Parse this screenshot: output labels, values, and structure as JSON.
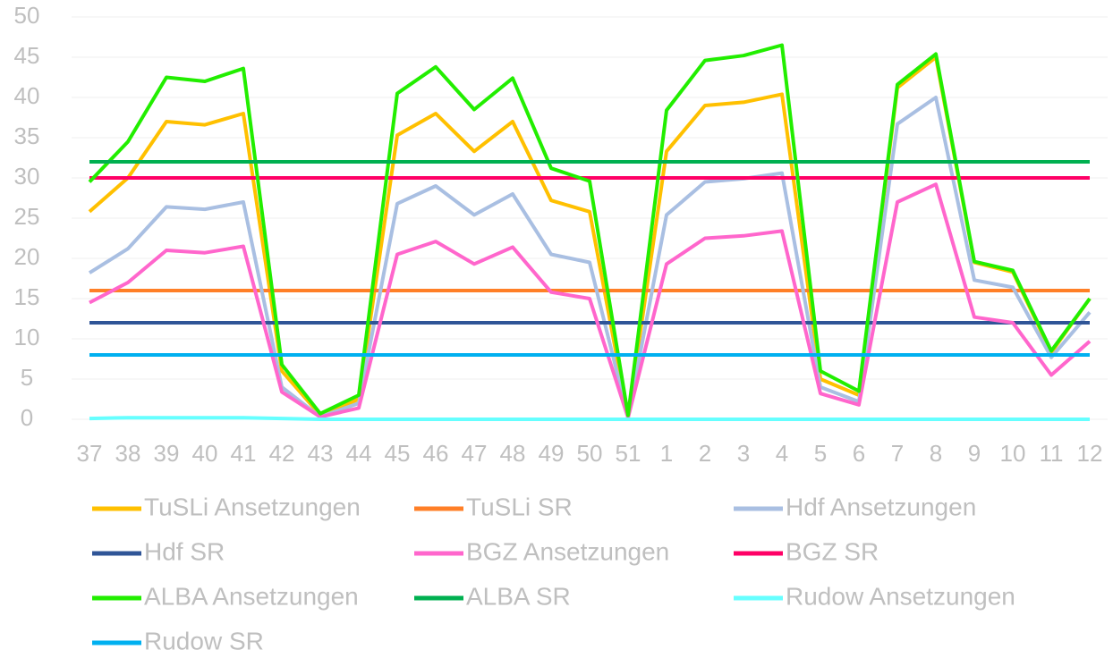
{
  "chart_data": {
    "type": "line",
    "categories": [
      "37",
      "38",
      "39",
      "40",
      "41",
      "42",
      "43",
      "44",
      "45",
      "46",
      "47",
      "48",
      "49",
      "50",
      "51",
      "1",
      "2",
      "3",
      "4",
      "5",
      "6",
      "7",
      "8",
      "9",
      "10",
      "11",
      "12"
    ],
    "series": [
      {
        "name": "TuSLi Ansetzungen",
        "color": "#ffc000",
        "values": [
          25.8,
          30,
          37,
          36.6,
          38,
          6,
          0.5,
          2.5,
          35.3,
          38,
          33.3,
          37,
          27.2,
          25.8,
          0.3,
          33.3,
          39,
          39.4,
          40.4,
          5,
          3,
          41.2,
          45,
          19.5,
          18.3,
          8.3,
          15
        ]
      },
      {
        "name": "TuSLi SR",
        "color": "#ff7f27",
        "values": [
          16,
          16,
          16,
          16,
          16,
          16,
          16,
          16,
          16,
          16,
          16,
          16,
          16,
          16,
          16,
          16,
          16,
          16,
          16,
          16,
          16,
          16,
          16,
          16,
          16,
          16,
          16
        ]
      },
      {
        "name": "Hdf Ansetzungen",
        "color": "#a9bfe2",
        "values": [
          18.2,
          21.2,
          26.4,
          26.1,
          27,
          4,
          0.3,
          2,
          26.8,
          29,
          25.4,
          28,
          20.5,
          19.5,
          0.3,
          25.4,
          29.5,
          29.9,
          30.6,
          4,
          2.2,
          36.7,
          40,
          17.3,
          16.4,
          7.7,
          13.3
        ]
      },
      {
        "name": "Hdf SR",
        "color": "#2f5597",
        "values": [
          12,
          12,
          12,
          12,
          12,
          12,
          12,
          12,
          12,
          12,
          12,
          12,
          12,
          12,
          12,
          12,
          12,
          12,
          12,
          12,
          12,
          12,
          12,
          12,
          12,
          12,
          12
        ]
      },
      {
        "name": "BGZ Ansetzungen",
        "color": "#ff66cc",
        "values": [
          14.5,
          17,
          21,
          20.7,
          21.5,
          3.4,
          0.3,
          1.4,
          20.5,
          22.1,
          19.3,
          21.4,
          15.8,
          15,
          0.2,
          19.3,
          22.5,
          22.8,
          23.4,
          3.2,
          1.8,
          27,
          29.2,
          12.7,
          12,
          5.5,
          9.7
        ]
      },
      {
        "name": "BGZ SR",
        "color": "#ff0066",
        "values": [
          30,
          30,
          30,
          30,
          30,
          30,
          30,
          30,
          30,
          30,
          30,
          30,
          30,
          30,
          30,
          30,
          30,
          30,
          30,
          30,
          30,
          30,
          30,
          30,
          30,
          30,
          30
        ]
      },
      {
        "name": "ALBA Ansetzungen",
        "color": "#22ee00",
        "values": [
          29.5,
          34.5,
          42.5,
          42,
          43.6,
          6.8,
          0.7,
          3,
          40.5,
          43.8,
          38.5,
          42.4,
          31.2,
          29.6,
          0.5,
          38.4,
          44.6,
          45.2,
          46.5,
          6,
          3.5,
          41.6,
          45.4,
          19.6,
          18.5,
          8.5,
          15
        ]
      },
      {
        "name": "ALBA SR",
        "color": "#00b050",
        "values": [
          32,
          32,
          32,
          32,
          32,
          32,
          32,
          32,
          32,
          32,
          32,
          32,
          32,
          32,
          32,
          32,
          32,
          32,
          32,
          32,
          32,
          32,
          32,
          32,
          32,
          32,
          32
        ]
      },
      {
        "name": "Rudow Ansetzungen",
        "color": "#66ffff",
        "values": [
          0.1,
          0.2,
          0.2,
          0.2,
          0.2,
          0.1,
          0,
          0,
          0,
          0,
          0,
          0,
          0,
          0,
          0,
          0,
          0,
          0,
          0,
          0,
          0,
          0,
          0,
          0,
          0,
          0,
          0
        ]
      },
      {
        "name": "Rudow SR",
        "color": "#00b0f0",
        "values": [
          8,
          8,
          8,
          8,
          8,
          8,
          8,
          8,
          8,
          8,
          8,
          8,
          8,
          8,
          8,
          8,
          8,
          8,
          8,
          8,
          8,
          8,
          8,
          8,
          8,
          8,
          8
        ]
      }
    ],
    "ylim": [
      0,
      50
    ],
    "yticks": [
      0,
      5,
      10,
      15,
      20,
      25,
      30,
      35,
      40,
      45,
      50
    ],
    "grid": true,
    "legend": "bottom"
  }
}
